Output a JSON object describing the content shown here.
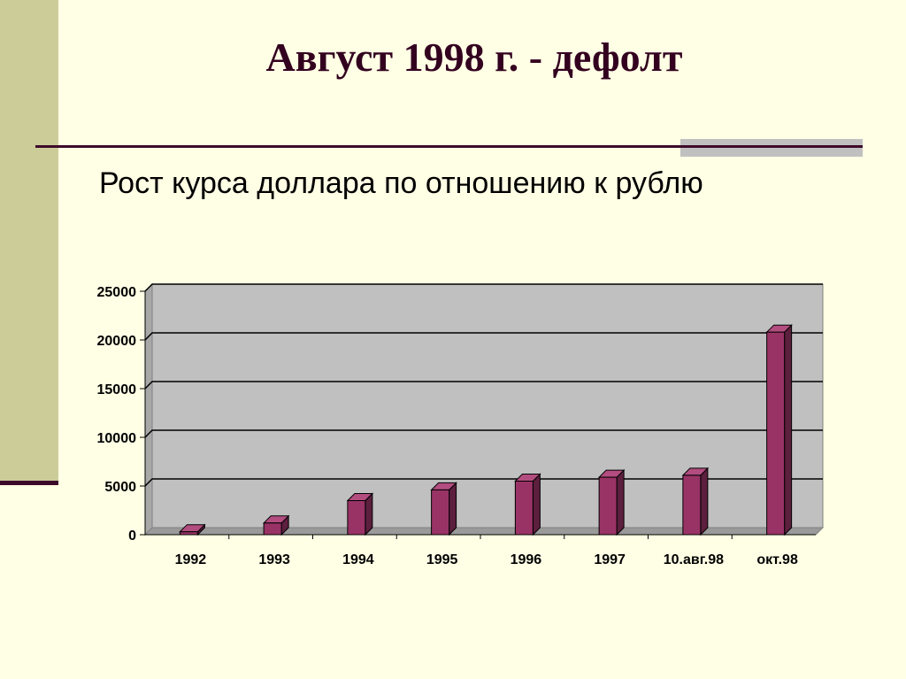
{
  "slide": {
    "title": "Август 1998 г. - дефолт",
    "subtitle": "Рост курса доллара по отношению к рублю"
  },
  "colors": {
    "background": "#ffffe5",
    "left_band": "#cccc99",
    "rule": "#3d0a2a",
    "plot_area": "#c0c0c0",
    "bar_front": "#993366",
    "bar_top": "#b34d80",
    "bar_side": "#5c1f3d"
  },
  "chart_data": {
    "type": "bar",
    "categories": [
      "1992",
      "1993",
      "1994",
      "1995",
      "1996",
      "1997",
      "10.авг.98",
      "окт.98"
    ],
    "values": [
      300,
      1200,
      3500,
      4600,
      5500,
      5900,
      6100,
      20800
    ],
    "ylim": [
      0,
      25000
    ],
    "yticks": [
      "0",
      "5000",
      "10000",
      "15000",
      "20000",
      "25000"
    ],
    "grid": true,
    "legend": "none"
  }
}
